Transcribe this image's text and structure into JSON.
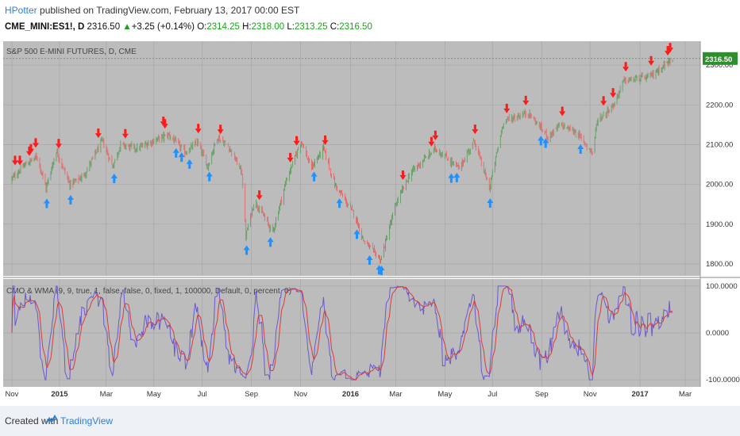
{
  "header": {
    "author": "HPotter",
    "published": "published on TradingView.com, February 13, 2017 00:00 EST",
    "symbol": "CME_MINI:ES1!, D",
    "last": "2316.50",
    "change": "+3.25 (+0.14%)",
    "o_label": "O:",
    "o_val": "2314.25",
    "h_label": "H:",
    "h_val": "2318.00",
    "l_label": "L:",
    "l_val": "2313.25",
    "c_label": "C:",
    "c_val": "2316.50"
  },
  "footer": {
    "created": "Created with",
    "brand": "TradingView"
  },
  "colors": {
    "plot_bg": "#bcbcbc",
    "grid": "#a9a9a9",
    "bull": "#5f9e5f",
    "bear": "#e26a6a",
    "sell_arrow": "#ff1a1a",
    "buy_arrow": "#1e90ff",
    "cmo": "#6a5acd",
    "wma": "#d93b3b",
    "price_tag": "#2f8f2f"
  },
  "chart_data": [
    {
      "type": "candlestick",
      "title": "S&P 500 E-MINI FUTURES, D, CME",
      "ylim": [
        1770,
        2360
      ],
      "y_ticks": [
        "1800.00",
        "1900.00",
        "2000.00",
        "2100.00",
        "2200.00",
        "2300.00"
      ],
      "last_price_tag": "2316.50",
      "x_ticks": [
        "Nov",
        "2015",
        "Mar",
        "May",
        "Jul",
        "Sep",
        "Nov",
        "2016",
        "Mar",
        "May",
        "Jul",
        "Sep",
        "Nov",
        "2017",
        "Mar"
      ],
      "close_path": [
        [
          "2014-11-01",
          2010
        ],
        [
          "2014-11-20",
          2050
        ],
        [
          "2014-12-05",
          2070
        ],
        [
          "2014-12-16",
          1990
        ],
        [
          "2014-12-29",
          2085
        ],
        [
          "2015-01-15",
          2000
        ],
        [
          "2015-02-01",
          2020
        ],
        [
          "2015-02-25",
          2110
        ],
        [
          "2015-03-10",
          2045
        ],
        [
          "2015-03-20",
          2100
        ],
        [
          "2015-04-10",
          2090
        ],
        [
          "2015-05-01",
          2110
        ],
        [
          "2015-05-20",
          2125
        ],
        [
          "2015-06-10",
          2080
        ],
        [
          "2015-06-25",
          2105
        ],
        [
          "2015-07-08",
          2045
        ],
        [
          "2015-07-20",
          2120
        ],
        [
          "2015-08-05",
          2090
        ],
        [
          "2015-08-20",
          2030
        ],
        [
          "2015-08-25",
          1870
        ],
        [
          "2015-09-05",
          1960
        ],
        [
          "2015-09-28",
          1880
        ],
        [
          "2015-10-15",
          2010
        ],
        [
          "2015-11-03",
          2110
        ],
        [
          "2015-11-15",
          2040
        ],
        [
          "2015-12-01",
          2090
        ],
        [
          "2015-12-15",
          2000
        ],
        [
          "2016-01-10",
          1920
        ],
        [
          "2016-01-20",
          1860
        ],
        [
          "2016-02-11",
          1810
        ],
        [
          "2016-03-01",
          1950
        ],
        [
          "2016-03-20",
          2030
        ],
        [
          "2016-04-20",
          2090
        ],
        [
          "2016-05-20",
          2040
        ],
        [
          "2016-06-08",
          2110
        ],
        [
          "2016-06-27",
          1990
        ],
        [
          "2016-07-15",
          2160
        ],
        [
          "2016-08-15",
          2180
        ],
        [
          "2016-09-09",
          2120
        ],
        [
          "2016-09-25",
          2150
        ],
        [
          "2016-10-15",
          2130
        ],
        [
          "2016-11-04",
          2080
        ],
        [
          "2016-11-10",
          2160
        ],
        [
          "2016-12-01",
          2200
        ],
        [
          "2016-12-13",
          2260
        ],
        [
          "2017-01-15",
          2270
        ],
        [
          "2017-02-13",
          2316
        ]
      ]
    },
    {
      "type": "line",
      "title": "CMO & WMA (9, 9, true, 1, false, false, 0, fixed, 1, 100000, Default, 0, percent, 0)",
      "ylim": [
        -115,
        115
      ],
      "y_ticks": [
        "100.0000",
        "0.0000",
        "-100.0000"
      ],
      "series": [
        {
          "name": "CMO"
        },
        {
          "name": "WMA"
        }
      ],
      "oscillation_range": [
        -100,
        100
      ]
    }
  ]
}
